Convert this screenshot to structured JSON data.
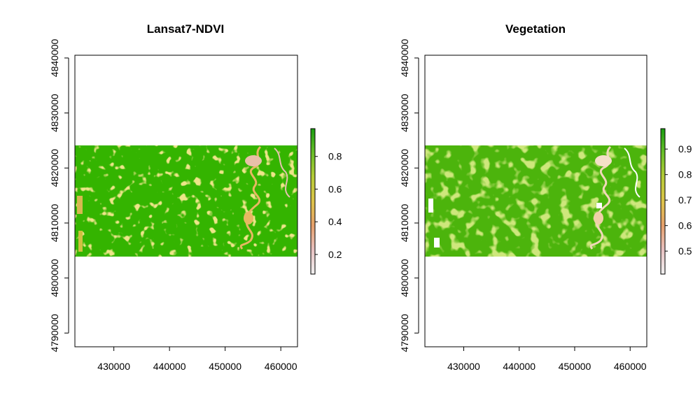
{
  "chart_data": [
    {
      "type": "heatmap",
      "title": "Lansat7-NDVI",
      "x_ticks": [
        430000,
        440000,
        450000,
        460000
      ],
      "y_ticks": [
        4790000,
        4800000,
        4810000,
        4820000,
        4830000,
        4840000
      ],
      "xlim": [
        423000,
        463000
      ],
      "ylim": [
        4787500,
        4840500
      ],
      "raster_extent": {
        "x": [
          423000,
          463000
        ],
        "y": [
          4804000,
          4824000
        ]
      },
      "legend": {
        "range": [
          0.08,
          0.97
        ],
        "ticks": [
          0.2,
          0.4,
          0.6,
          0.8
        ],
        "colors": [
          "#f2f2f2",
          "#e8c2c2",
          "#e6a06c",
          "#ddc44a",
          "#b7cc38",
          "#69bf2a",
          "#1a9d10"
        ]
      },
      "dominant_color": "#34b400",
      "secondary_colors": [
        "#c4d030",
        "#e0b050",
        "#e8a8a0",
        "#f4f4e8"
      ],
      "xlabel": "",
      "ylabel": ""
    },
    {
      "type": "heatmap",
      "title": "Vegetation",
      "x_ticks": [
        430000,
        440000,
        450000,
        460000
      ],
      "y_ticks": [
        4790000,
        4800000,
        4810000,
        4820000,
        4830000,
        4840000
      ],
      "xlim": [
        423000,
        463000
      ],
      "ylim": [
        4787500,
        4840500
      ],
      "raster_extent": {
        "x": [
          423000,
          463000
        ],
        "y": [
          4804000,
          4824000
        ]
      },
      "legend": {
        "range": [
          0.41,
          0.98
        ],
        "ticks": [
          0.5,
          0.6,
          0.7,
          0.8,
          0.9
        ],
        "colors": [
          "#f2f2f2",
          "#e8c2c2",
          "#e6a06c",
          "#ddc44a",
          "#b7cc38",
          "#69bf2a",
          "#1a9d10"
        ]
      },
      "dominant_color": "#4cb40c",
      "secondary_colors": [
        "#8ec820",
        "#d4d040",
        "#f0c8a0",
        "#ffffff"
      ],
      "xlabel": "",
      "ylabel": ""
    }
  ]
}
